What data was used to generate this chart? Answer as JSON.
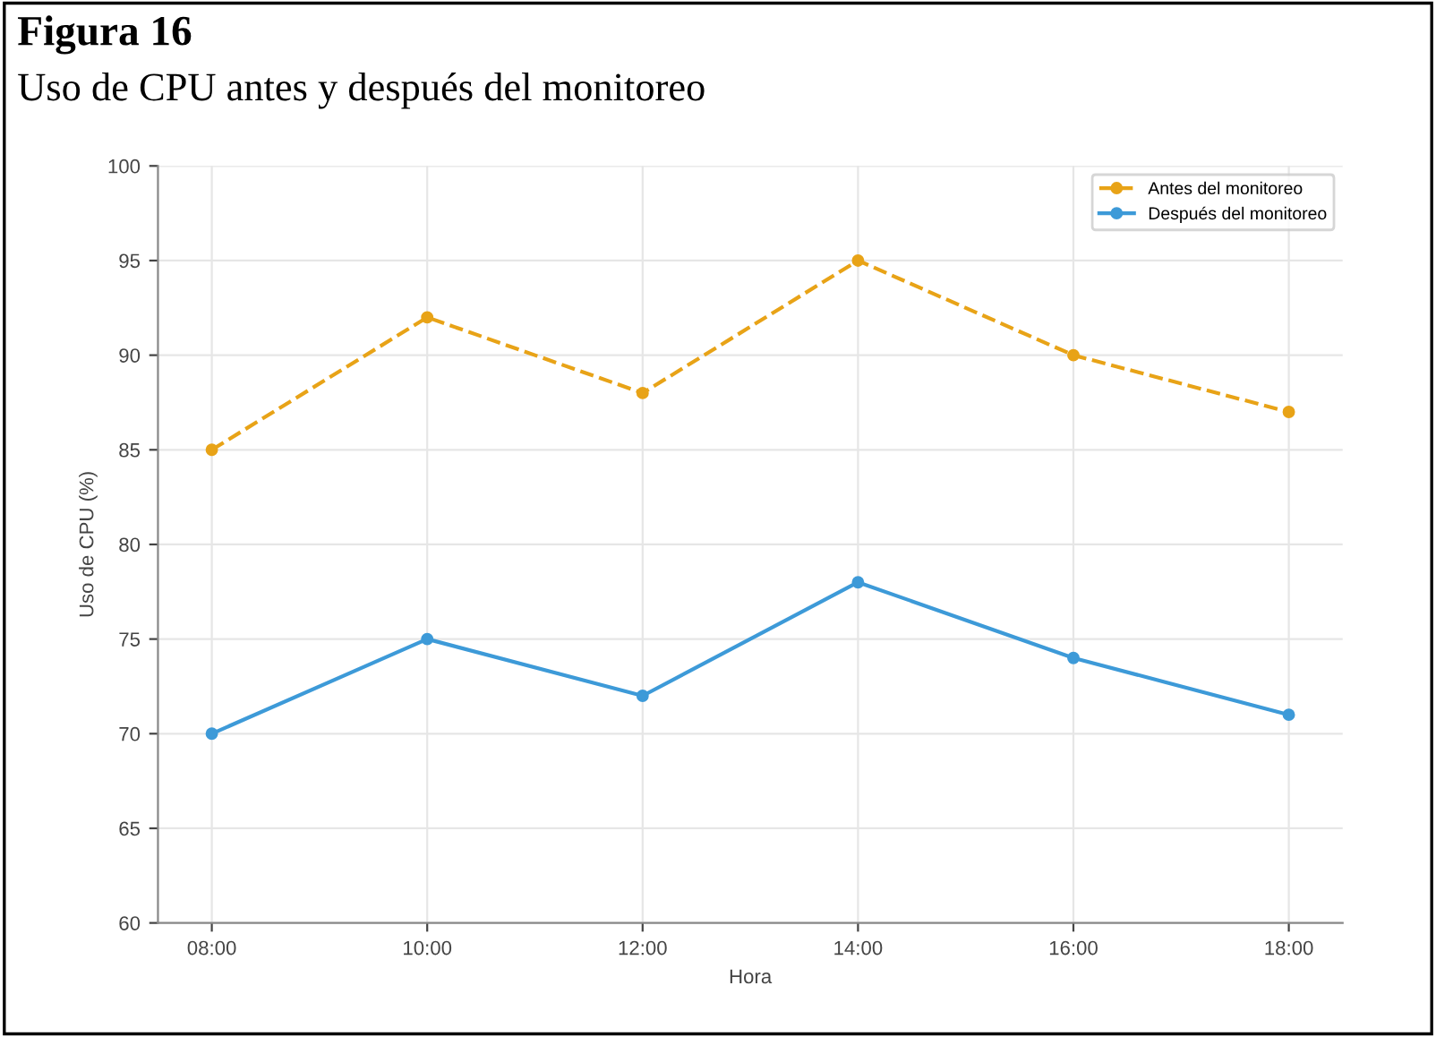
{
  "chart_data": {
    "type": "line",
    "title": "Figura 16",
    "subtitle": "Uso de CPU antes y después del monitoreo",
    "xlabel": "Hora",
    "ylabel": "Uso de CPU (%)",
    "categories": [
      "08:00",
      "10:00",
      "12:00",
      "14:00",
      "16:00",
      "18:00"
    ],
    "series": [
      {
        "name": "Antes del monitoreo",
        "color": "#e8a317",
        "values": [
          85,
          92,
          88,
          95,
          90,
          87
        ],
        "line_style": "dashed"
      },
      {
        "name": "Después del monitoreo",
        "color": "#3d9ad8",
        "values": [
          70,
          75,
          72,
          78,
          74,
          71
        ],
        "line_style": "solid"
      }
    ],
    "marker": "circle",
    "ylim": [
      60,
      100
    ],
    "yticks": [
      60,
      65,
      70,
      75,
      80,
      85,
      90,
      95,
      100
    ],
    "grid": true,
    "legend": "top right"
  }
}
